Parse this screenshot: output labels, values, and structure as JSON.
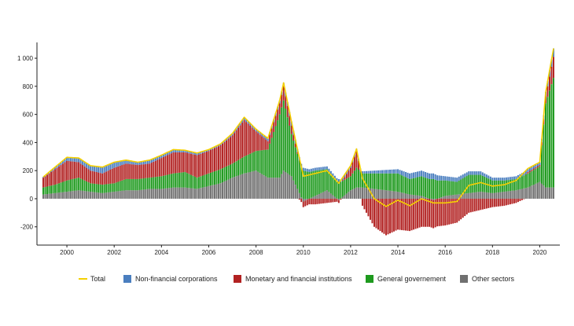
{
  "chart_data": {
    "type": "bar",
    "stacked": true,
    "title": "",
    "xlabel": "",
    "ylabel": "",
    "ylim": [
      -330,
      1090
    ],
    "y_ticks": [
      -200,
      0,
      200,
      400,
      600,
      800,
      1000
    ],
    "y_tick_labels": [
      "-200",
      "0",
      "200",
      "400",
      "600",
      "800",
      "1 000"
    ],
    "x_tick_labels": [
      "2000",
      "2002",
      "2004",
      "2006",
      "2008",
      "2010",
      "2012",
      "2014",
      "2016",
      "2018",
      "2020"
    ],
    "x_tick_years": [
      2000,
      2002,
      2004,
      2006,
      2008,
      2010,
      2012,
      2014,
      2016,
      2018,
      2020
    ],
    "x_start": "1999-01",
    "x_end": "2020-08",
    "grid": false,
    "legend_position": "bottom",
    "colors": {
      "Total": "#f5d000",
      "Non-financial corporations": "#4a7ebf",
      "Monetary and financial institutions": "#b22222",
      "General governement": "#1e9a1e",
      "Other sectors": "#707070"
    },
    "x": [
      "1999-01",
      "1999-07",
      "2000-01",
      "2000-07",
      "2001-01",
      "2001-07",
      "2002-01",
      "2002-07",
      "2003-01",
      "2003-07",
      "2004-01",
      "2004-07",
      "2005-01",
      "2005-07",
      "2006-01",
      "2006-07",
      "2007-01",
      "2007-07",
      "2008-01",
      "2008-07",
      "2009-01",
      "2009-03",
      "2009-07",
      "2010-01",
      "2010-07",
      "2011-01",
      "2011-07",
      "2012-01",
      "2012-04",
      "2012-07",
      "2013-01",
      "2013-07",
      "2014-01",
      "2014-07",
      "2015-01",
      "2015-07",
      "2016-01",
      "2016-07",
      "2017-01",
      "2017-07",
      "2018-01",
      "2018-07",
      "2019-01",
      "2019-07",
      "2020-01",
      "2020-04",
      "2020-08"
    ],
    "series": [
      {
        "name": "Non-financial corporations",
        "values": [
          5,
          15,
          25,
          30,
          35,
          45,
          40,
          25,
          20,
          25,
          20,
          20,
          15,
          15,
          10,
          10,
          15,
          20,
          15,
          20,
          20,
          25,
          30,
          20,
          20,
          20,
          20,
          15,
          15,
          15,
          20,
          25,
          30,
          40,
          40,
          40,
          30,
          30,
          25,
          25,
          20,
          20,
          20,
          25,
          20,
          30,
          60
        ]
      },
      {
        "name": "Monetary and financial institutions",
        "values": [
          70,
          110,
          140,
          110,
          90,
          80,
          110,
          110,
          100,
          100,
          130,
          150,
          140,
          160,
          160,
          170,
          200,
          260,
          140,
          60,
          80,
          100,
          60,
          -40,
          -40,
          -30,
          -20,
          60,
          120,
          -50,
          -200,
          -260,
          -220,
          -230,
          -200,
          -200,
          -190,
          -170,
          -100,
          -80,
          -60,
          -50,
          -30,
          10,
          10,
          50,
          150
        ]
      },
      {
        "name": "General governement",
        "values": [
          50,
          60,
          80,
          90,
          60,
          60,
          60,
          80,
          80,
          80,
          90,
          100,
          110,
          80,
          90,
          100,
          100,
          120,
          140,
          200,
          450,
          500,
          300,
          200,
          180,
          150,
          120,
          100,
          140,
          100,
          110,
          120,
          130,
          110,
          140,
          140,
          110,
          90,
          130,
          120,
          90,
          80,
          80,
          100,
          110,
          600,
          780
        ]
      },
      {
        "name": "Other sectors",
        "values": [
          30,
          40,
          50,
          60,
          50,
          40,
          50,
          60,
          60,
          70,
          70,
          80,
          80,
          70,
          90,
          110,
          150,
          180,
          200,
          150,
          150,
          200,
          160,
          -20,
          20,
          60,
          -10,
          60,
          80,
          80,
          70,
          60,
          50,
          30,
          20,
          -10,
          20,
          30,
          40,
          50,
          40,
          50,
          60,
          80,
          120,
          80,
          80
        ]
      },
      {
        "name": "Total",
        "values": [
          155,
          225,
          295,
          290,
          235,
          225,
          260,
          275,
          260,
          275,
          310,
          350,
          345,
          325,
          350,
          390,
          465,
          580,
          495,
          430,
          700,
          825,
          550,
          160,
          180,
          200,
          110,
          235,
          355,
          145,
          0,
          -55,
          -10,
          -50,
          0,
          -30,
          -30,
          -20,
          95,
          115,
          90,
          100,
          130,
          215,
          260,
          760,
          1070
        ]
      }
    ]
  }
}
